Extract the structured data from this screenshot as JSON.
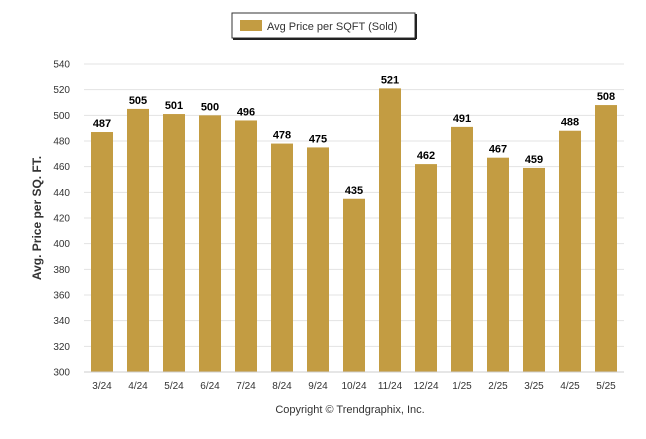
{
  "chart_data": {
    "type": "bar",
    "categories": [
      "3/24",
      "4/24",
      "5/24",
      "6/24",
      "7/24",
      "8/24",
      "9/24",
      "10/24",
      "11/24",
      "12/24",
      "1/25",
      "2/25",
      "3/25",
      "4/25",
      "5/25"
    ],
    "series": [
      {
        "name": "Avg Price per SQFT (Sold)",
        "values": [
          487,
          505,
          501,
          500,
          496,
          478,
          475,
          435,
          521,
          462,
          491,
          467,
          459,
          488,
          508
        ],
        "color": "#c39c42"
      }
    ],
    "data_labels": [
      "487",
      "505",
      "501",
      "500",
      "496",
      "478",
      "475",
      "435",
      "521",
      "462",
      "491",
      "467",
      "459",
      "488",
      "508"
    ],
    "ylabel": "Avg. Price per SQ. FT.",
    "xlabel": "",
    "ylim": [
      300,
      540
    ],
    "yticks": [
      "300",
      "320",
      "340",
      "360",
      "380",
      "400",
      "420",
      "440",
      "460",
      "480",
      "500",
      "520",
      "540"
    ],
    "grid": true,
    "legend_position": "top-center",
    "footer": "Copyright © Trendgraphix, Inc."
  }
}
